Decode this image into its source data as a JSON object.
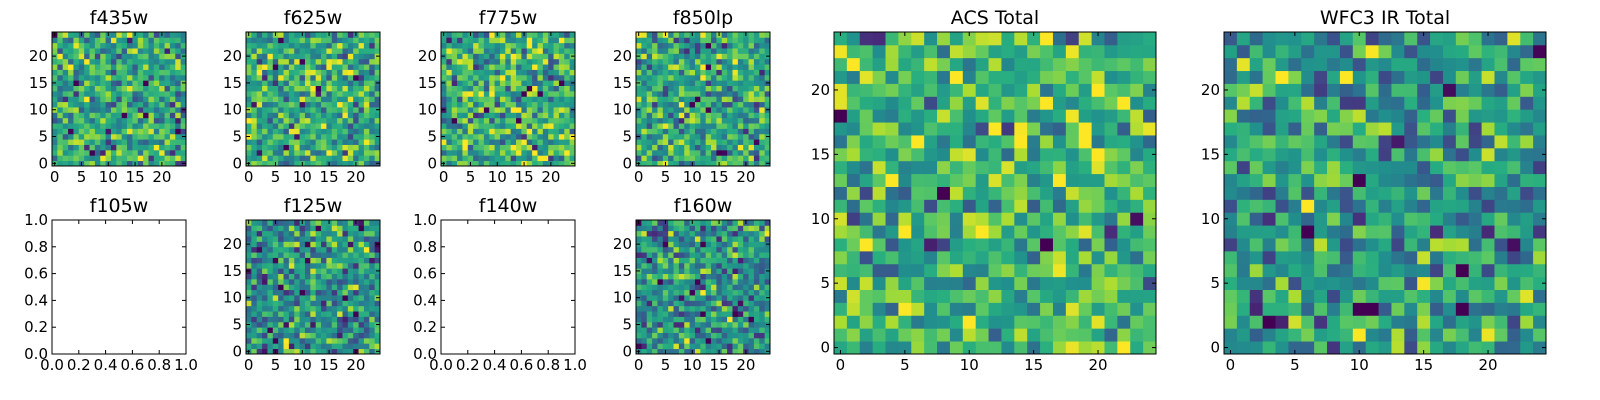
{
  "figure": {},
  "colors": {
    "colormap": "viridis",
    "viridis_low": "#440154",
    "viridis_mid": "#21918c",
    "viridis_high": "#fde725",
    "frame": "#000000",
    "background": "#ffffff"
  },
  "chart_data": [
    {
      "type": "heatmap",
      "title": "f435w",
      "grid": false,
      "xlim": [
        -0.5,
        24.5
      ],
      "ylim": [
        -0.5,
        24.5
      ],
      "xticks": [
        "0",
        "5",
        "10",
        "15",
        "20"
      ],
      "yticks": [
        "0",
        "5",
        "10",
        "15",
        "20"
      ],
      "pixels": [
        25,
        25
      ],
      "has_image": true,
      "mean_level": 0.62
    },
    {
      "type": "heatmap",
      "title": "f625w",
      "grid": false,
      "xlim": [
        -0.5,
        24.5
      ],
      "ylim": [
        -0.5,
        24.5
      ],
      "xticks": [
        "0",
        "5",
        "10",
        "15",
        "20"
      ],
      "yticks": [
        "0",
        "5",
        "10",
        "15",
        "20"
      ],
      "pixels": [
        25,
        25
      ],
      "has_image": true,
      "mean_level": 0.62
    },
    {
      "type": "heatmap",
      "title": "f775w",
      "grid": false,
      "xlim": [
        -0.5,
        24.5
      ],
      "ylim": [
        -0.5,
        24.5
      ],
      "xticks": [
        "0",
        "5",
        "10",
        "15",
        "20"
      ],
      "yticks": [
        "0",
        "5",
        "10",
        "15",
        "20"
      ],
      "pixels": [
        25,
        25
      ],
      "has_image": true,
      "mean_level": 0.64
    },
    {
      "type": "heatmap",
      "title": "f850lp",
      "grid": false,
      "xlim": [
        -0.5,
        24.5
      ],
      "ylim": [
        -0.5,
        24.5
      ],
      "xticks": [
        "0",
        "5",
        "10",
        "15",
        "20"
      ],
      "yticks": [
        "0",
        "5",
        "10",
        "15",
        "20"
      ],
      "pixels": [
        25,
        25
      ],
      "has_image": true,
      "mean_level": 0.6
    },
    {
      "type": "heatmap",
      "title": "f105w",
      "grid": false,
      "xlim": [
        0,
        1
      ],
      "ylim": [
        0,
        1
      ],
      "xticks": [
        "0.0",
        "0.2",
        "0.4",
        "0.6",
        "0.8",
        "1.0"
      ],
      "yticks": [
        "0.0",
        "0.2",
        "0.4",
        "0.6",
        "0.8",
        "1.0"
      ],
      "has_image": false
    },
    {
      "type": "heatmap",
      "title": "f125w",
      "grid": false,
      "xlim": [
        -0.5,
        24.5
      ],
      "ylim": [
        -0.5,
        24.5
      ],
      "xticks": [
        "0",
        "5",
        "10",
        "15",
        "20"
      ],
      "yticks": [
        "0",
        "5",
        "10",
        "15",
        "20"
      ],
      "pixels": [
        25,
        25
      ],
      "has_image": true,
      "mean_level": 0.52
    },
    {
      "type": "heatmap",
      "title": "f140w",
      "grid": false,
      "xlim": [
        0,
        1
      ],
      "ylim": [
        0,
        1
      ],
      "xticks": [
        "0.0",
        "0.2",
        "0.4",
        "0.6",
        "0.8",
        "1.0"
      ],
      "yticks": [
        "0.0",
        "0.2",
        "0.4",
        "0.6",
        "0.8",
        "1.0"
      ],
      "has_image": false
    },
    {
      "type": "heatmap",
      "title": "f160w",
      "grid": false,
      "xlim": [
        -0.5,
        24.5
      ],
      "ylim": [
        -0.5,
        24.5
      ],
      "xticks": [
        "0",
        "5",
        "10",
        "15",
        "20"
      ],
      "yticks": [
        "0",
        "5",
        "10",
        "15",
        "20"
      ],
      "pixels": [
        25,
        25
      ],
      "has_image": true,
      "mean_level": 0.52
    },
    {
      "type": "heatmap",
      "title": "ACS Total",
      "grid": false,
      "xlim": [
        -0.5,
        24.5
      ],
      "ylim": [
        -0.5,
        24.5
      ],
      "xticks": [
        "0",
        "5",
        "10",
        "15",
        "20"
      ],
      "yticks": [
        "0",
        "5",
        "10",
        "15",
        "20"
      ],
      "pixels": [
        25,
        25
      ],
      "has_image": true,
      "mean_level": 0.66
    },
    {
      "type": "heatmap",
      "title": "WFC3 IR Total",
      "grid": false,
      "xlim": [
        -0.5,
        24.5
      ],
      "ylim": [
        -0.5,
        24.5
      ],
      "xticks": [
        "0",
        "5",
        "10",
        "15",
        "20"
      ],
      "yticks": [
        "0",
        "5",
        "10",
        "15",
        "20"
      ],
      "pixels": [
        25,
        25
      ],
      "has_image": true,
      "mean_level": 0.55
    }
  ]
}
